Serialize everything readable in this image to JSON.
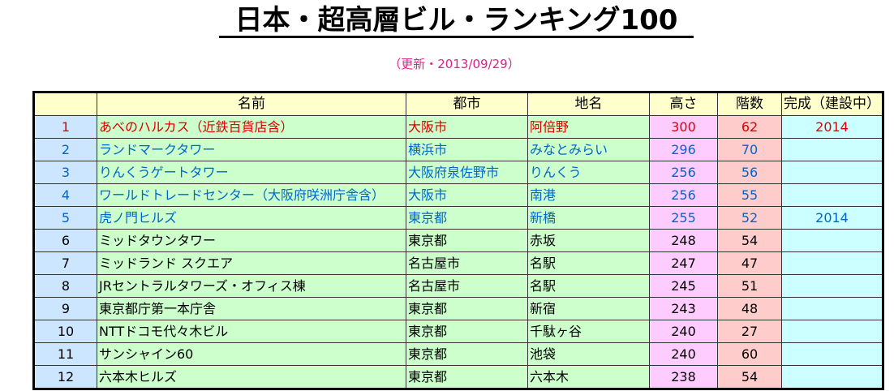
{
  "title": "日本・超高層ビル・ランキング100",
  "subtitle": "（更新・2013/09/29）",
  "colors": {
    "header_bg": "#ffffcc",
    "rank_bg": "#cce6ff",
    "name_bg": "#ccffcc",
    "height_bg": "#ffccff",
    "floors_bg": "#ffcccc",
    "completion_bg": "#ccffff",
    "red_text": "#dd0000",
    "blue_text": "#0066cc",
    "subtitle": "#e0208a"
  },
  "table": {
    "headers": [
      "",
      "名前",
      "都市",
      "地名",
      "高さ",
      "階数",
      "完成（建設中）"
    ],
    "rows": [
      {
        "rank": "1",
        "name": "あべのハルカス（近鉄百貨店含）",
        "city": "大阪市",
        "place": "阿倍野",
        "height": "300",
        "floors": "62",
        "completion": "2014",
        "color": "red"
      },
      {
        "rank": "2",
        "name": "ランドマークタワー",
        "city": "横浜市",
        "place": "みなとみらい",
        "height": "296",
        "floors": "70",
        "completion": "",
        "color": "blue"
      },
      {
        "rank": "3",
        "name": "りんくうゲートタワー",
        "city": "大阪府泉佐野市",
        "place": "りんくう",
        "height": "256",
        "floors": "56",
        "completion": "",
        "color": "blue"
      },
      {
        "rank": "4",
        "name": "ワールドトレードセンター（大阪府咲洲庁舎含）",
        "city": "大阪市",
        "place": "南港",
        "height": "256",
        "floors": "55",
        "completion": "",
        "color": "blue"
      },
      {
        "rank": "5",
        "name": "虎ノ門ヒルズ",
        "city": "東京都",
        "place": "新橋",
        "height": "255",
        "floors": "52",
        "completion": "2014",
        "color": "blue"
      },
      {
        "rank": "6",
        "name": "ミッドタウンタワー",
        "city": "東京都",
        "place": "赤坂",
        "height": "248",
        "floors": "54",
        "completion": "",
        "color": "black"
      },
      {
        "rank": "7",
        "name": "ミッドランド スクエア",
        "city": "名古屋市",
        "place": "名駅",
        "height": "247",
        "floors": "47",
        "completion": "",
        "color": "black"
      },
      {
        "rank": "8",
        "name": "JRセントラルタワーズ・オフィス棟",
        "city": "名古屋市",
        "place": "名駅",
        "height": "245",
        "floors": "51",
        "completion": "",
        "color": "black"
      },
      {
        "rank": "9",
        "name": "東京都庁第一本庁舎",
        "city": "東京都",
        "place": "新宿",
        "height": "243",
        "floors": "48",
        "completion": "",
        "color": "black"
      },
      {
        "rank": "10",
        "name": "NTTドコモ代々木ビル",
        "city": "東京都",
        "place": "千駄ヶ谷",
        "height": "240",
        "floors": "27",
        "completion": "",
        "color": "black"
      },
      {
        "rank": "11",
        "name": "サンシャイン60",
        "city": "東京都",
        "place": "池袋",
        "height": "240",
        "floors": "60",
        "completion": "",
        "color": "black"
      },
      {
        "rank": "12",
        "name": "六本木ヒルズ",
        "city": "東京都",
        "place": "六本木",
        "height": "238",
        "floors": "54",
        "completion": "",
        "color": "black"
      }
    ]
  }
}
